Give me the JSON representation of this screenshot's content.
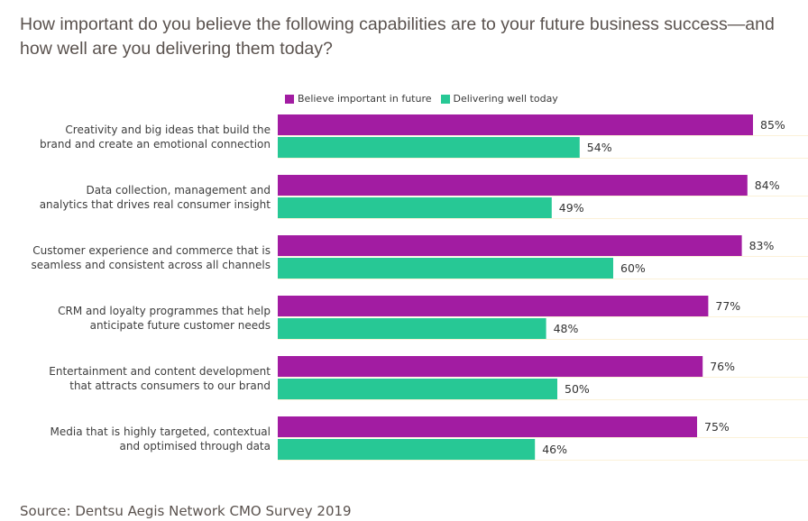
{
  "chart_data": {
    "type": "bar",
    "orientation": "horizontal",
    "title": "How important do you believe the following capabilities are to your future business success—and how well are you delivering them today?",
    "categories": [
      [
        "Creativity and big ideas that build the",
        "brand and create an emotional connection"
      ],
      [
        "Data collection, management and",
        "analytics that drives real consumer insight"
      ],
      [
        "Customer experience and commerce that is",
        "seamless and consistent across all channels"
      ],
      [
        "CRM and loyalty programmes that help",
        "anticipate future customer needs"
      ],
      [
        "Entertainment and content  development",
        "that attracts consumers to our brand"
      ],
      [
        "Media that is highly targeted, contextual",
        "and optimised through data"
      ]
    ],
    "series": [
      {
        "name": "Believe important in future",
        "color": "#a21ca2",
        "values": [
          85,
          84,
          83,
          77,
          76,
          75
        ]
      },
      {
        "name": "Delivering well today",
        "color": "#27c895",
        "values": [
          54,
          49,
          60,
          48,
          50,
          46
        ]
      }
    ],
    "value_suffix": "%",
    "xlim": [
      0,
      100
    ],
    "grid": false,
    "legend_position": "top",
    "xlabel": "",
    "ylabel": ""
  },
  "source": "Source: Dentsu Aegis Network CMO Survey 2019"
}
